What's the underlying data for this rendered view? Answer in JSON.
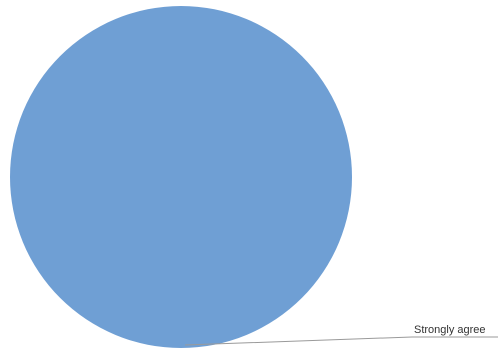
{
  "chart_data": {
    "type": "pie",
    "title": "",
    "categories": [
      "Strongly agree"
    ],
    "values": [
      100
    ],
    "legend": "none",
    "slice_colors": [
      "#6f9fd4"
    ],
    "leader_line_color": "#9a9a9a"
  }
}
